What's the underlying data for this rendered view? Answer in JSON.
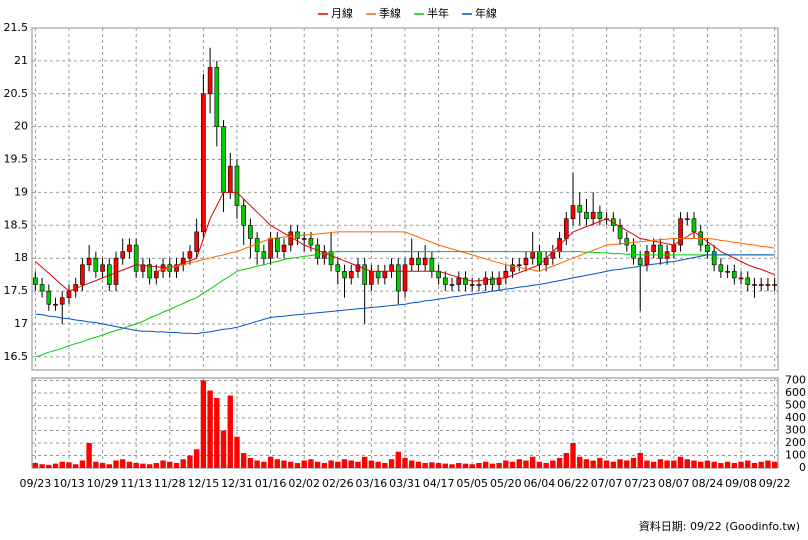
{
  "chart_data": {
    "type": "candlestick",
    "categories": [
      "09/23",
      null,
      null,
      null,
      null,
      "10/13",
      null,
      null,
      null,
      null,
      "10/29",
      null,
      null,
      null,
      null,
      "11/13",
      null,
      null,
      null,
      null,
      "11/28",
      null,
      null,
      null,
      null,
      "12/15",
      null,
      null,
      null,
      null,
      "12/31",
      null,
      null,
      null,
      null,
      "01/16",
      null,
      null,
      null,
      null,
      "02/02",
      null,
      null,
      null,
      null,
      "02/26",
      null,
      null,
      null,
      null,
      "03/16",
      null,
      null,
      null,
      null,
      "03/31",
      null,
      null,
      null,
      null,
      "04/17",
      null,
      null,
      null,
      null,
      "05/05",
      null,
      null,
      null,
      null,
      "05/20",
      null,
      null,
      null,
      null,
      "06/04",
      null,
      null,
      null,
      null,
      "06/22",
      null,
      null,
      null,
      null,
      "07/07",
      null,
      null,
      null,
      null,
      "07/23",
      null,
      null,
      null,
      null,
      "08/07",
      null,
      null,
      null,
      null,
      "08/24",
      null,
      null,
      null,
      null,
      "09/08",
      null,
      null,
      null,
      null,
      "09/22"
    ],
    "open": [
      17.7,
      17.6,
      17.5,
      17.3,
      17.3,
      17.4,
      17.5,
      17.6,
      17.9,
      18.0,
      17.8,
      17.9,
      17.6,
      18.0,
      18.1,
      18.2,
      17.8,
      17.9,
      17.7,
      17.8,
      17.9,
      17.8,
      17.9,
      18.0,
      18.1,
      18.4,
      20.5,
      20.9,
      20.0,
      19.0,
      19.4,
      18.8,
      18.5,
      18.3,
      18.1,
      18.0,
      18.3,
      18.1,
      18.2,
      18.4,
      18.3,
      18.3,
      18.2,
      18.0,
      18.1,
      17.9,
      17.8,
      17.7,
      17.8,
      17.9,
      17.6,
      17.8,
      17.7,
      17.8,
      17.9,
      17.5,
      17.9,
      18.0,
      17.9,
      18.0,
      17.8,
      17.7,
      17.6,
      17.6,
      17.7,
      17.6,
      17.6,
      17.6,
      17.7,
      17.6,
      17.7,
      17.8,
      17.9,
      17.9,
      18.0,
      18.1,
      17.9,
      18.0,
      18.1,
      18.3,
      18.6,
      18.8,
      18.7,
      18.6,
      18.7,
      18.6,
      18.6,
      18.5,
      18.3,
      18.2,
      18.0,
      17.9,
      18.1,
      18.2,
      18.0,
      18.1,
      18.2,
      18.6,
      18.6,
      18.4,
      18.2,
      18.1,
      17.9,
      17.8,
      17.8,
      17.7,
      17.7,
      17.6,
      17.6,
      17.6,
      17.6
    ],
    "high": [
      17.8,
      17.7,
      17.6,
      17.4,
      17.5,
      17.6,
      17.7,
      18.0,
      18.2,
      18.1,
      18.0,
      18.0,
      18.1,
      18.3,
      18.3,
      18.3,
      18.0,
      18.0,
      17.9,
      18.0,
      18.0,
      18.0,
      18.1,
      18.2,
      18.6,
      20.8,
      21.2,
      21.0,
      20.1,
      19.6,
      19.5,
      18.9,
      18.6,
      18.4,
      18.2,
      18.4,
      18.4,
      18.3,
      18.5,
      18.5,
      18.4,
      18.4,
      18.3,
      18.2,
      18.4,
      18.0,
      17.9,
      17.9,
      18.0,
      18.0,
      17.9,
      17.9,
      17.9,
      18.0,
      18.0,
      18.0,
      18.3,
      18.1,
      18.2,
      18.1,
      17.9,
      17.8,
      17.7,
      17.8,
      17.8,
      17.7,
      17.7,
      17.8,
      17.8,
      17.8,
      17.9,
      18.0,
      18.0,
      18.1,
      18.4,
      18.2,
      18.1,
      18.2,
      18.4,
      18.7,
      19.3,
      19.0,
      18.9,
      19.0,
      18.8,
      18.7,
      18.7,
      18.6,
      18.4,
      18.3,
      18.1,
      18.2,
      18.3,
      18.3,
      18.2,
      18.3,
      18.7,
      18.7,
      18.7,
      18.5,
      18.3,
      18.2,
      18.0,
      17.9,
      17.9,
      17.8,
      17.8,
      17.7,
      17.7,
      17.7,
      17.7
    ],
    "low": [
      17.5,
      17.4,
      17.2,
      17.2,
      17.0,
      17.3,
      17.4,
      17.5,
      17.8,
      17.7,
      17.7,
      17.5,
      17.5,
      17.9,
      18.0,
      17.7,
      17.7,
      17.6,
      17.6,
      17.7,
      17.7,
      17.7,
      17.8,
      17.9,
      18.0,
      18.3,
      20.2,
      19.7,
      18.7,
      18.9,
      18.6,
      18.2,
      18.0,
      17.9,
      17.9,
      17.9,
      18.0,
      18.0,
      18.1,
      18.2,
      18.1,
      18.1,
      17.9,
      17.9,
      17.8,
      17.6,
      17.4,
      17.6,
      17.7,
      17.0,
      17.5,
      17.6,
      17.6,
      17.7,
      17.3,
      17.4,
      17.8,
      17.8,
      17.8,
      17.7,
      17.6,
      17.5,
      17.5,
      17.5,
      17.5,
      17.5,
      17.5,
      17.5,
      17.5,
      17.5,
      17.6,
      17.7,
      17.8,
      17.8,
      17.9,
      17.8,
      17.8,
      17.9,
      18.0,
      18.2,
      18.5,
      18.5,
      18.5,
      18.5,
      18.5,
      18.5,
      18.4,
      18.2,
      18.1,
      17.9,
      17.2,
      17.8,
      18.0,
      17.9,
      17.9,
      18.0,
      18.1,
      18.5,
      18.3,
      18.1,
      18.0,
      17.8,
      17.7,
      17.7,
      17.6,
      17.6,
      17.5,
      17.4,
      17.5,
      17.5,
      17.5
    ],
    "close": [
      17.6,
      17.5,
      17.3,
      17.3,
      17.4,
      17.5,
      17.6,
      17.9,
      18.0,
      17.8,
      17.9,
      17.6,
      18.0,
      18.1,
      18.2,
      17.8,
      17.9,
      17.7,
      17.8,
      17.9,
      17.8,
      17.9,
      18.0,
      18.1,
      18.4,
      20.5,
      20.9,
      20.0,
      19.0,
      19.4,
      18.8,
      18.5,
      18.3,
      18.1,
      18.0,
      18.3,
      18.1,
      18.2,
      18.4,
      18.3,
      18.3,
      18.2,
      18.0,
      18.1,
      17.9,
      17.8,
      17.7,
      17.8,
      17.9,
      17.6,
      17.8,
      17.7,
      17.8,
      17.9,
      17.5,
      17.9,
      18.0,
      17.9,
      18.0,
      17.8,
      17.7,
      17.6,
      17.6,
      17.7,
      17.6,
      17.6,
      17.6,
      17.7,
      17.6,
      17.7,
      17.8,
      17.9,
      17.9,
      18.0,
      18.1,
      17.9,
      18.0,
      18.1,
      18.3,
      18.6,
      18.8,
      18.7,
      18.6,
      18.7,
      18.6,
      18.6,
      18.5,
      18.3,
      18.2,
      18.0,
      17.9,
      18.1,
      18.2,
      18.0,
      18.1,
      18.2,
      18.6,
      18.6,
      18.4,
      18.2,
      18.1,
      17.9,
      17.8,
      17.8,
      17.7,
      17.7,
      17.6,
      17.6,
      17.6,
      17.6,
      17.6
    ],
    "up_color": "#ff0000",
    "down_color": "#00cc00",
    "ylim": [
      16.3,
      21.5
    ],
    "yticks": [
      16.5,
      17,
      17.5,
      18,
      18.5,
      19,
      19.5,
      20,
      20.5,
      21,
      21.5
    ],
    "grid": true,
    "series": [
      {
        "name": "月線",
        "color": "#dd0000",
        "values": [
          17.95,
          17.86,
          17.77,
          17.68,
          17.59,
          17.5,
          17.54,
          17.58,
          17.62,
          17.66,
          17.7,
          17.74,
          17.78,
          17.82,
          17.86,
          17.9,
          17.89,
          17.88,
          17.87,
          17.86,
          17.85,
          17.89,
          17.93,
          17.96,
          18.0,
          18.3,
          18.6,
          18.8,
          19.0,
          19.0,
          19.0,
          18.9,
          18.8,
          18.7,
          18.6,
          18.5,
          18.44,
          18.38,
          18.32,
          18.26,
          18.2,
          18.16,
          18.12,
          18.08,
          18.04,
          18.0,
          17.96,
          17.92,
          17.88,
          17.84,
          17.8,
          17.8,
          17.8,
          17.8,
          17.8,
          17.8,
          17.8,
          17.8,
          17.8,
          17.8,
          17.8,
          17.77,
          17.74,
          17.71,
          17.68,
          17.65,
          17.66,
          17.67,
          17.68,
          17.69,
          17.7,
          17.74,
          17.78,
          17.82,
          17.86,
          17.9,
          18.0,
          18.1,
          18.2,
          18.3,
          18.4,
          18.44,
          18.48,
          18.52,
          18.56,
          18.6,
          18.54,
          18.48,
          18.42,
          18.36,
          18.3,
          18.28,
          18.26,
          18.24,
          18.22,
          18.2,
          18.27,
          18.33,
          18.4,
          18.33,
          18.25,
          18.18,
          18.1,
          18.05,
          18.0,
          17.95,
          17.9,
          17.86,
          17.83,
          17.79,
          17.75
        ]
      },
      {
        "name": "季線",
        "color": "#ff6600",
        "values": [
          null,
          null,
          null,
          null,
          null,
          null,
          null,
          null,
          null,
          null,
          null,
          null,
          null,
          null,
          null,
          null,
          null,
          null,
          17.8,
          17.83,
          17.85,
          17.88,
          17.9,
          17.93,
          17.95,
          17.98,
          18.0,
          18.03,
          18.05,
          18.08,
          18.1,
          18.14,
          18.18,
          18.22,
          18.26,
          18.3,
          18.31,
          18.32,
          18.33,
          18.34,
          18.35,
          18.36,
          18.37,
          18.38,
          18.39,
          18.4,
          18.4,
          18.4,
          18.4,
          18.4,
          18.4,
          18.4,
          18.4,
          18.4,
          18.4,
          18.4,
          18.36,
          18.32,
          18.28,
          18.24,
          18.2,
          18.17,
          18.14,
          18.11,
          18.08,
          18.05,
          18.02,
          17.99,
          17.96,
          17.93,
          17.9,
          17.88,
          17.86,
          17.84,
          17.82,
          17.8,
          17.84,
          17.88,
          17.92,
          17.96,
          18.0,
          18.04,
          18.08,
          18.12,
          18.16,
          18.2,
          18.21,
          18.22,
          18.23,
          18.24,
          18.25,
          18.26,
          18.27,
          18.28,
          18.29,
          18.3,
          18.3,
          18.3,
          18.3,
          18.3,
          18.3,
          18.29,
          18.27,
          18.26,
          18.24,
          18.23,
          18.21,
          18.2,
          18.18,
          18.17,
          18.15
        ]
      },
      {
        "name": "半年",
        "color": "#00cc00",
        "values": [
          16.5,
          16.53,
          16.57,
          16.6,
          16.63,
          16.67,
          16.7,
          16.73,
          16.77,
          16.8,
          16.83,
          16.87,
          16.9,
          16.93,
          16.97,
          17.0,
          17.04,
          17.09,
          17.13,
          17.18,
          17.22,
          17.27,
          17.31,
          17.36,
          17.4,
          17.47,
          17.53,
          17.6,
          17.67,
          17.73,
          17.8,
          17.83,
          17.85,
          17.88,
          17.9,
          17.93,
          17.95,
          17.98,
          18.0,
          18.01,
          18.03,
          18.04,
          18.06,
          18.07,
          18.09,
          18.1,
          18.1,
          18.1,
          18.1,
          18.1,
          18.1,
          18.1,
          18.1,
          18.1,
          18.1,
          18.1,
          18.1,
          18.1,
          18.1,
          18.1,
          18.1,
          18.1,
          18.1,
          18.1,
          18.1,
          18.1,
          18.1,
          18.1,
          18.1,
          18.1,
          18.1,
          18.1,
          18.1,
          18.1,
          18.1,
          18.1,
          18.1,
          18.1,
          18.1,
          18.1,
          18.1,
          18.1,
          18.09,
          18.09,
          18.08,
          18.08,
          18.07,
          18.07,
          18.06,
          18.06,
          18.05,
          18.05,
          18.05,
          18.05,
          18.05,
          18.05,
          18.05,
          18.05,
          18.05,
          18.05,
          18.05,
          18.05,
          18.05,
          18.05,
          18.05,
          18.05,
          18.05,
          18.05,
          18.05,
          18.05,
          18.05
        ]
      },
      {
        "name": "年線",
        "color": "#0055cc",
        "values": [
          17.15,
          17.14,
          17.12,
          17.11,
          17.09,
          17.08,
          17.06,
          17.05,
          17.03,
          17.02,
          17.0,
          16.98,
          16.96,
          16.94,
          16.92,
          16.9,
          16.89,
          16.89,
          16.88,
          16.88,
          16.87,
          16.87,
          16.86,
          16.86,
          16.85,
          16.87,
          16.88,
          16.9,
          16.92,
          16.93,
          16.95,
          16.98,
          17.01,
          17.04,
          17.07,
          17.1,
          17.11,
          17.12,
          17.13,
          17.14,
          17.15,
          17.16,
          17.17,
          17.18,
          17.19,
          17.2,
          17.21,
          17.22,
          17.23,
          17.24,
          17.25,
          17.26,
          17.27,
          17.28,
          17.29,
          17.3,
          17.32,
          17.33,
          17.35,
          17.36,
          17.38,
          17.39,
          17.41,
          17.42,
          17.44,
          17.45,
          17.47,
          17.48,
          17.5,
          17.51,
          17.53,
          17.54,
          17.56,
          17.57,
          17.59,
          17.6,
          17.62,
          17.64,
          17.66,
          17.68,
          17.7,
          17.72,
          17.74,
          17.76,
          17.78,
          17.8,
          17.82,
          17.83,
          17.85,
          17.86,
          17.88,
          17.89,
          17.91,
          17.92,
          17.94,
          17.95,
          17.97,
          17.99,
          18.01,
          18.03,
          18.05,
          18.05,
          18.05,
          18.05,
          18.05,
          18.05,
          18.05,
          18.05,
          18.05,
          18.05,
          18.05
        ]
      }
    ],
    "volume": {
      "color": "#ff0000",
      "values": [
        40,
        30,
        25,
        35,
        50,
        45,
        30,
        60,
        200,
        50,
        40,
        30,
        60,
        70,
        50,
        40,
        35,
        30,
        40,
        60,
        50,
        40,
        70,
        100,
        150,
        700,
        620,
        560,
        300,
        580,
        250,
        120,
        80,
        60,
        50,
        90,
        70,
        60,
        50,
        40,
        60,
        70,
        50,
        40,
        60,
        50,
        70,
        60,
        50,
        90,
        60,
        50,
        40,
        70,
        130,
        80,
        60,
        50,
        40,
        45,
        40,
        35,
        30,
        40,
        35,
        30,
        40,
        50,
        35,
        40,
        60,
        50,
        70,
        60,
        90,
        50,
        40,
        60,
        80,
        120,
        200,
        90,
        70,
        60,
        80,
        60,
        50,
        70,
        60,
        80,
        120,
        60,
        50,
        70,
        60,
        60,
        90,
        70,
        60,
        50,
        60,
        50,
        40,
        50,
        40,
        50,
        60,
        40,
        50,
        60,
        50
      ],
      "ylim": [
        0,
        720
      ],
      "yticks": [
        0,
        100,
        200,
        300,
        400,
        500,
        600,
        700
      ]
    },
    "note": "資料日期: 09/22  (Goodinfo.tw)"
  }
}
